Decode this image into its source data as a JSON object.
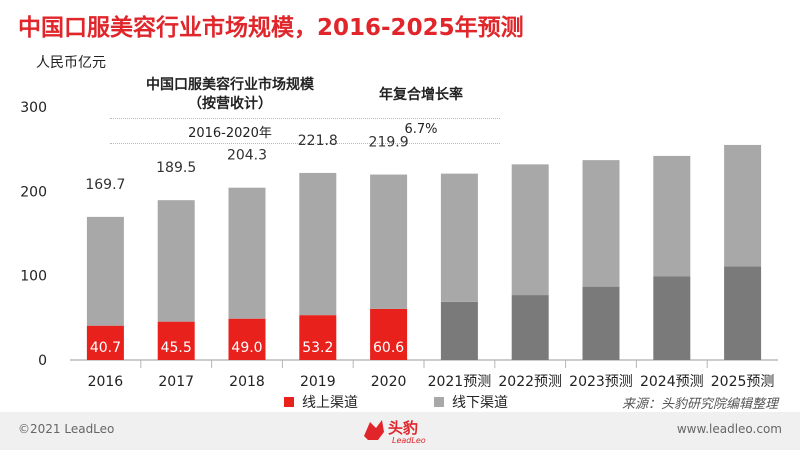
{
  "title": "中国口服美容行业市场规模，2016-2025年预测",
  "unit": "人民币亿元",
  "info_table": {
    "col1_header_line1": "中国口服美容行业市场规模",
    "col1_header_line2": "（按营收计）",
    "col2_header": "年复合增长率",
    "row_period": "2016-2020年",
    "row_value": "6.7%"
  },
  "chart_data": {
    "type": "bar",
    "stacked": true,
    "categories": [
      "2016",
      "2017",
      "2018",
      "2019",
      "2020",
      "2021预测",
      "2022预测",
      "2023预测",
      "2024预测",
      "2025预测"
    ],
    "series": [
      {
        "name": "线上渠道",
        "values": [
          40.7,
          45.5,
          49.0,
          53.2,
          60.6,
          69,
          77,
          87,
          99,
          111
        ]
      },
      {
        "name": "线下渠道",
        "values": [
          129.0,
          144.0,
          155.3,
          168.6,
          159.3,
          152,
          155,
          150,
          143,
          144
        ]
      }
    ],
    "totals": [
      169.7,
      189.5,
      204.3,
      221.8,
      219.9,
      null,
      null,
      null,
      null,
      null
    ],
    "online_labels": [
      "40.7",
      "45.5",
      "49.0",
      "53.2",
      "60.6"
    ],
    "total_labels": [
      "169.7",
      "189.5",
      "204.3",
      "221.8",
      "219.9"
    ],
    "yticks": [
      0,
      100,
      200,
      300
    ],
    "ylim": [
      0,
      300
    ],
    "legend_position": "bottom",
    "colors": {
      "online": "#e8211c",
      "offline": "#a8a8a8",
      "forecast_online": "#7a7a7a",
      "forecast_offline": "#a8a8a8",
      "title": "#e0262b"
    }
  },
  "legend": {
    "online": "线上渠道",
    "offline": "线下渠道"
  },
  "source": "来源：头豹研究院编辑整理",
  "footer": {
    "copyright": "©2021 LeadLeo",
    "website": "www.leadleo.com"
  },
  "logo": {
    "cn": "头豹",
    "en": "LeadLeo"
  }
}
